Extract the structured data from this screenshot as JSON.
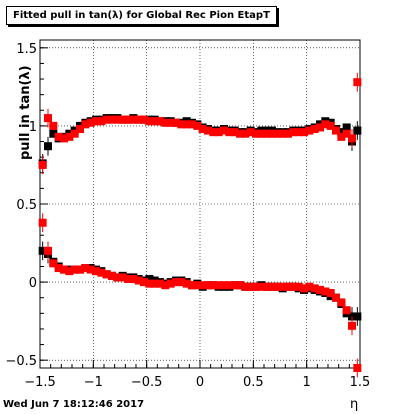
{
  "header": {
    "title": "Fitted pull in tan(λ) for Global Rec Pion EtapT",
    "timestamp": "Wed Jun  7 18:12:46 2017"
  },
  "chart_data": {
    "type": "scatter",
    "xlabel": "η",
    "ylabel": "pull in tan(λ)",
    "xlim": [
      -1.5,
      1.5
    ],
    "ylim": [
      -0.55,
      1.55
    ],
    "grid": true,
    "x_ticks": [
      "−1.5",
      "−1",
      "−0.5",
      "0",
      "0.5",
      "1",
      "1.5"
    ],
    "y_ticks": [
      "−0.5",
      "0",
      "0.5",
      "1",
      "1.5"
    ],
    "series": [
      {
        "name": "",
        "color": "#000000",
        "x": [
          -1.475,
          -1.425,
          -1.375,
          -1.325,
          -1.275,
          -1.225,
          -1.175,
          -1.125,
          -1.075,
          -1.025,
          -0.975,
          -0.925,
          -0.875,
          -0.825,
          -0.775,
          -0.725,
          -0.675,
          -0.625,
          -0.575,
          -0.525,
          -0.475,
          -0.425,
          -0.375,
          -0.325,
          -0.275,
          -0.225,
          -0.175,
          -0.125,
          -0.075,
          -0.025,
          0.025,
          0.075,
          0.125,
          0.175,
          0.225,
          0.275,
          0.325,
          0.375,
          0.425,
          0.475,
          0.525,
          0.575,
          0.625,
          0.675,
          0.725,
          0.775,
          0.825,
          0.875,
          0.925,
          0.975,
          1.025,
          1.075,
          1.125,
          1.175,
          1.225,
          1.275,
          1.325,
          1.375,
          1.425,
          1.475
        ],
        "y": [
          0.76,
          0.87,
          0.95,
          0.92,
          0.93,
          0.95,
          0.97,
          1.0,
          1.02,
          1.03,
          1.04,
          1.04,
          1.05,
          1.05,
          1.05,
          1.04,
          1.04,
          1.05,
          1.04,
          1.04,
          1.04,
          1.04,
          1.03,
          1.03,
          1.03,
          1.02,
          1.02,
          1.03,
          1.02,
          1.01,
          0.99,
          0.98,
          0.97,
          0.97,
          0.98,
          0.97,
          0.97,
          0.96,
          0.96,
          0.97,
          0.96,
          0.97,
          0.97,
          0.97,
          0.96,
          0.96,
          0.96,
          0.97,
          0.97,
          0.97,
          0.98,
          0.99,
          1.01,
          1.03,
          1.02,
          0.98,
          0.96,
          0.99,
          0.9,
          0.97
        ]
      },
      {
        "name": "",
        "color": "#ff0000",
        "x": [
          -1.475,
          -1.425,
          -1.375,
          -1.325,
          -1.275,
          -1.225,
          -1.175,
          -1.125,
          -1.075,
          -1.025,
          -0.975,
          -0.925,
          -0.875,
          -0.825,
          -0.775,
          -0.725,
          -0.675,
          -0.625,
          -0.575,
          -0.525,
          -0.475,
          -0.425,
          -0.375,
          -0.325,
          -0.275,
          -0.225,
          -0.175,
          -0.125,
          -0.075,
          -0.025,
          0.025,
          0.075,
          0.125,
          0.175,
          0.225,
          0.275,
          0.325,
          0.375,
          0.425,
          0.475,
          0.525,
          0.575,
          0.625,
          0.675,
          0.725,
          0.775,
          0.825,
          0.875,
          0.925,
          0.975,
          1.025,
          1.075,
          1.125,
          1.175,
          1.225,
          1.275,
          1.325,
          1.375,
          1.425,
          1.475
        ],
        "y": [
          0.75,
          1.05,
          1.0,
          0.93,
          0.92,
          0.93,
          0.95,
          0.98,
          1.01,
          1.02,
          1.03,
          1.03,
          1.04,
          1.04,
          1.04,
          1.04,
          1.04,
          1.04,
          1.04,
          1.04,
          1.03,
          1.03,
          1.03,
          1.02,
          1.02,
          1.02,
          1.01,
          1.01,
          1.01,
          1.0,
          0.98,
          0.97,
          0.96,
          0.96,
          0.97,
          0.96,
          0.96,
          0.95,
          0.95,
          0.96,
          0.95,
          0.95,
          0.95,
          0.95,
          0.95,
          0.95,
          0.95,
          0.96,
          0.96,
          0.96,
          0.97,
          0.98,
          0.99,
          1.01,
          1.0,
          0.97,
          0.93,
          0.95,
          0.92,
          1.28
        ]
      },
      {
        "name": "",
        "color": "#000000",
        "x": [
          -1.475,
          -1.425,
          -1.375,
          -1.325,
          -1.275,
          -1.225,
          -1.175,
          -1.125,
          -1.075,
          -1.025,
          -0.975,
          -0.925,
          -0.875,
          -0.825,
          -0.775,
          -0.725,
          -0.675,
          -0.625,
          -0.575,
          -0.525,
          -0.475,
          -0.425,
          -0.375,
          -0.325,
          -0.275,
          -0.225,
          -0.175,
          -0.125,
          -0.075,
          -0.025,
          0.025,
          0.075,
          0.125,
          0.175,
          0.225,
          0.275,
          0.325,
          0.375,
          0.425,
          0.475,
          0.525,
          0.575,
          0.625,
          0.675,
          0.725,
          0.775,
          0.825,
          0.875,
          0.925,
          0.975,
          1.025,
          1.075,
          1.125,
          1.175,
          1.225,
          1.275,
          1.325,
          1.375,
          1.425,
          1.475
        ],
        "y": [
          0.2,
          0.18,
          0.13,
          0.1,
          0.08,
          0.08,
          0.08,
          0.08,
          0.09,
          0.09,
          0.08,
          0.07,
          0.05,
          0.04,
          0.03,
          0.04,
          0.03,
          0.03,
          0.02,
          0.01,
          0.02,
          0.01,
          0.0,
          -0.01,
          0.0,
          0.01,
          0.01,
          0.0,
          -0.02,
          -0.01,
          -0.03,
          -0.02,
          -0.02,
          -0.03,
          -0.03,
          -0.03,
          -0.02,
          -0.02,
          -0.03,
          -0.03,
          -0.03,
          -0.02,
          -0.03,
          -0.03,
          -0.03,
          -0.04,
          -0.03,
          -0.03,
          -0.04,
          -0.05,
          -0.04,
          -0.05,
          -0.06,
          -0.07,
          -0.09,
          -0.1,
          -0.14,
          -0.2,
          -0.22,
          -0.22
        ]
      },
      {
        "name": "",
        "color": "#ff0000",
        "x": [
          -1.475,
          -1.425,
          -1.375,
          -1.325,
          -1.275,
          -1.225,
          -1.175,
          -1.125,
          -1.075,
          -1.025,
          -0.975,
          -0.925,
          -0.875,
          -0.825,
          -0.775,
          -0.725,
          -0.675,
          -0.625,
          -0.575,
          -0.525,
          -0.475,
          -0.425,
          -0.375,
          -0.325,
          -0.275,
          -0.225,
          -0.175,
          -0.125,
          -0.075,
          -0.025,
          0.025,
          0.075,
          0.125,
          0.175,
          0.225,
          0.275,
          0.325,
          0.375,
          0.425,
          0.475,
          0.525,
          0.575,
          0.625,
          0.675,
          0.725,
          0.775,
          0.825,
          0.875,
          0.925,
          0.975,
          1.025,
          1.075,
          1.125,
          1.175,
          1.225,
          1.275,
          1.325,
          1.375,
          1.425,
          1.475
        ],
        "y": [
          0.38,
          0.2,
          0.12,
          0.09,
          0.08,
          0.07,
          0.08,
          0.08,
          0.09,
          0.08,
          0.07,
          0.06,
          0.05,
          0.04,
          0.03,
          0.03,
          0.02,
          0.02,
          0.01,
          0.0,
          -0.01,
          -0.01,
          -0.01,
          -0.02,
          -0.01,
          0.0,
          0.0,
          -0.01,
          -0.02,
          -0.02,
          -0.02,
          -0.02,
          -0.02,
          -0.02,
          -0.02,
          -0.02,
          -0.02,
          -0.02,
          -0.03,
          -0.03,
          -0.03,
          -0.03,
          -0.03,
          -0.03,
          -0.03,
          -0.03,
          -0.03,
          -0.03,
          -0.03,
          -0.04,
          -0.03,
          -0.04,
          -0.05,
          -0.06,
          -0.07,
          -0.1,
          -0.13,
          -0.18,
          -0.28,
          -0.55
        ]
      }
    ]
  }
}
